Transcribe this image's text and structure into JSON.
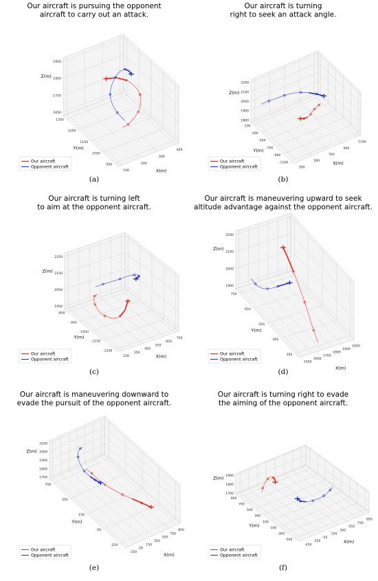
{
  "figure": {
    "legend_labels": [
      "Our aircraft",
      "Opponent aircraft"
    ],
    "colors": {
      "our": "#e8261e",
      "opponent": "#1a2fd4"
    }
  },
  "chart_data": [
    {
      "type": "line3d",
      "panel_label": "(a)",
      "title": "Our aircraft is pursuing the opponent aircraft to carry out an attack.",
      "xlabel": "X(m)",
      "ylabel": "Y(m)",
      "zlabel": "Z(m)",
      "x_ticks": [
        "100",
        "200",
        "300",
        "400"
      ],
      "y_ticks": [
        "950",
        "1050",
        "1150",
        "1250",
        "1350"
      ],
      "z_ticks": [
        "1650",
        "1750",
        "1850",
        "1950"
      ],
      "xlim": [
        50,
        450
      ],
      "ylim": [
        900,
        1400
      ],
      "zlim": [
        1600,
        2000
      ],
      "legend": "lower-left",
      "series": [
        {
          "name": "Our aircraft",
          "x": [
            150,
            210,
            275,
            335,
            380,
            405,
            400,
            370,
            320,
            265
          ],
          "y": [
            1000,
            1030,
            1070,
            1110,
            1150,
            1190,
            1230,
            1265,
            1290,
            1305
          ],
          "z": [
            1760,
            1735,
            1720,
            1715,
            1725,
            1750,
            1780,
            1810,
            1830,
            1835
          ]
        },
        {
          "name": "Opponent aircraft",
          "x": [
            210,
            190,
            185,
            200,
            240,
            290,
            340,
            385,
            410,
            420
          ],
          "y": [
            1060,
            1100,
            1140,
            1180,
            1220,
            1255,
            1285,
            1300,
            1300,
            1290
          ],
          "z": [
            1740,
            1775,
            1810,
            1840,
            1860,
            1870,
            1868,
            1855,
            1835,
            1815
          ]
        }
      ]
    },
    {
      "type": "line3d",
      "panel_label": "(b)",
      "title": "Our aircraft is turning right to seek an attack angle.",
      "xlabel": "X(m)",
      "ylabel": "Y(m)",
      "zlabel": "Z(m)",
      "x_ticks": [
        "300",
        "500",
        "700",
        "900",
        "1100"
      ],
      "y_ticks": [
        "-1100",
        "-900",
        "-700",
        "-500",
        "-300",
        "-100"
      ],
      "z_ticks": [
        "1800",
        "1900",
        "2000",
        "2100",
        "2200"
      ],
      "xlim": [
        200,
        1200
      ],
      "ylim": [
        -1200,
        0
      ],
      "zlim": [
        1750,
        2200
      ],
      "legend": "lower-left",
      "series": [
        {
          "name": "Our aircraft",
          "x": [
            1050,
            1000,
            940,
            880,
            820,
            760,
            700,
            650,
            620
          ],
          "y": [
            -350,
            -400,
            -450,
            -500,
            -560,
            -620,
            -650,
            -640,
            -600
          ],
          "z": [
            1820,
            1835,
            1850,
            1865,
            1880,
            1890,
            1890,
            1885,
            1880
          ]
        },
        {
          "name": "Opponent aircraft",
          "x": [
            250,
            350,
            450,
            550,
            650,
            750,
            850,
            950,
            1030
          ],
          "y": [
            -200,
            -220,
            -250,
            -280,
            -320,
            -360,
            -400,
            -440,
            -480
          ],
          "z": [
            2000,
            2010,
            2020,
            2030,
            2035,
            2030,
            2010,
            1980,
            1950
          ]
        }
      ]
    },
    {
      "type": "line3d",
      "panel_label": "(c)",
      "title": "Our aircraft is turning left to aim at the opponent aircraft.",
      "xlabel": "X(m)",
      "ylabel": "Y(m)",
      "zlabel": "Z(m)",
      "x_ticks": [
        "250",
        "350",
        "450",
        "550",
        "650",
        "750"
      ],
      "y_ticks": [
        "-1250",
        "-1150",
        "-1050",
        "-950",
        "-850"
      ],
      "z_ticks": [
        "1950",
        "2050",
        "2150",
        "2250"
      ],
      "xlim": [
        200,
        800
      ],
      "ylim": [
        -1300,
        -800
      ],
      "zlim": [
        1900,
        2250
      ],
      "legend": "lower-left",
      "series": [
        {
          "name": "Our aircraft",
          "x": [
            420,
            370,
            330,
            300,
            290,
            310,
            360,
            420,
            480,
            530
          ],
          "y": [
            -900,
            -920,
            -950,
            -990,
            -1030,
            -1070,
            -1100,
            -1110,
            -1100,
            -1080
          ],
          "z": [
            2000,
            2010,
            2015,
            2010,
            1995,
            1980,
            1970,
            1975,
            1995,
            2030
          ]
        },
        {
          "name": "Opponent aircraft",
          "x": [
            400,
            470,
            540,
            610,
            660,
            690,
            690,
            660,
            610
          ],
          "y": [
            -900,
            -905,
            -915,
            -930,
            -955,
            -990,
            -1030,
            -1060,
            -1080
          ],
          "z": [
            2050,
            2055,
            2060,
            2070,
            2090,
            2110,
            2130,
            2145,
            2150
          ]
        }
      ]
    },
    {
      "type": "line3d",
      "panel_label": "(d)",
      "title": "Our aircraft is maneuvering upward to seek altitude advantage against the opponent aircraft.",
      "xlabel": "X(m)",
      "ylabel": "Y(m)",
      "zlabel": "Z(m)",
      "x_ticks": [
        "1500",
        "1600",
        "1700",
        "1800",
        "1900",
        "2000"
      ],
      "y_ticks": [
        "350",
        "450",
        "550",
        "650",
        "750"
      ],
      "z_ticks": [
        "1900",
        "2000",
        "2100",
        "2200"
      ],
      "xlim": [
        1450,
        2050
      ],
      "ylim": [
        300,
        800
      ],
      "zlim": [
        1850,
        2200
      ],
      "legend": "lower-left",
      "series": [
        {
          "name": "Our aircraft",
          "x": [
            1700,
            1720,
            1740,
            1760,
            1770,
            1775,
            1770,
            1760
          ],
          "y": [
            330,
            380,
            430,
            480,
            530,
            580,
            620,
            650
          ],
          "z": [
            1870,
            1900,
            1940,
            1980,
            2030,
            2080,
            2130,
            2170
          ]
        },
        {
          "name": "Opponent aircraft",
          "x": [
            1480,
            1500,
            1540,
            1590,
            1640,
            1690,
            1740,
            1790
          ],
          "y": [
            700,
            680,
            660,
            650,
            645,
            640,
            630,
            620
          ],
          "z": [
            1990,
            1970,
            1955,
            1950,
            1950,
            1955,
            1965,
            1975
          ]
        }
      ]
    },
    {
      "type": "line3d",
      "panel_label": "(e)",
      "title": "Our aircraft is maneuvering downward to evade the pursuit of the opponent aircraft.",
      "xlabel": "X(m)",
      "ylabel": "Y(m)",
      "zlabel": "Z(m)",
      "x_ticks": [
        "-250",
        "-50",
        "150",
        "350",
        "550",
        "750",
        "850"
      ],
      "y_ticks": [
        "-250",
        "-50",
        "150",
        "350",
        "550"
      ],
      "z_ticks": [
        "1700",
        "1800",
        "1900",
        "2000",
        "2100"
      ],
      "xlim": [
        -300,
        900
      ],
      "ylim": [
        -300,
        600
      ],
      "zlim": [
        1650,
        2100
      ],
      "legend": "lower-left",
      "series": [
        {
          "name": "Our aircraft",
          "x": [
            -50,
            0,
            50,
            120,
            200,
            300,
            400,
            500,
            600
          ],
          "y": [
            300,
            260,
            220,
            170,
            120,
            60,
            0,
            -60,
            -120
          ],
          "z": [
            1980,
            1950,
            1910,
            1870,
            1840,
            1810,
            1790,
            1770,
            1750
          ]
        },
        {
          "name": "Opponent aircraft",
          "x": [
            150,
            80,
            0,
            -60,
            -90,
            -70,
            -20,
            40,
            100
          ],
          "y": [
            450,
            440,
            420,
            390,
            350,
            310,
            270,
            240,
            210
          ],
          "z": [
            2050,
            2060,
            2060,
            2040,
            2000,
            1950,
            1910,
            1880,
            1860
          ]
        }
      ]
    },
    {
      "type": "line3d",
      "panel_label": "(f)",
      "title": "Our aircraft is turning right to evade the aiming of the opponent aircraft.",
      "xlabel": "X(m)",
      "ylabel": "Y(m)",
      "zlabel": "Z(m)",
      "x_ticks": [
        "-450",
        "-250",
        "-50",
        "150",
        "350",
        "550",
        "750",
        "950"
      ],
      "y_ticks": [
        "-500",
        "-300",
        "-100",
        "100",
        "300",
        "500",
        "700",
        "900"
      ],
      "z_ticks": [
        "1700",
        "1800",
        "1900"
      ],
      "xlim": [
        -500,
        1000
      ],
      "ylim": [
        -600,
        1000
      ],
      "zlim": [
        1650,
        1950
      ],
      "legend": "lower-left",
      "series": [
        {
          "name": "Our aircraft",
          "x": [
            -200,
            -150,
            -80,
            0,
            60,
            100,
            110,
            90
          ],
          "y": [
            700,
            730,
            760,
            780,
            780,
            760,
            730,
            700
          ],
          "z": [
            1720,
            1760,
            1800,
            1830,
            1840,
            1830,
            1810,
            1790
          ]
        },
        {
          "name": "Opponent aircraft",
          "x": [
            900,
            800,
            700,
            580,
            450,
            320,
            200,
            120,
            100
          ],
          "y": [
            200,
            150,
            100,
            50,
            20,
            20,
            50,
            100,
            150
          ],
          "z": [
            1700,
            1710,
            1720,
            1730,
            1740,
            1745,
            1750,
            1760,
            1780
          ]
        }
      ]
    }
  ]
}
